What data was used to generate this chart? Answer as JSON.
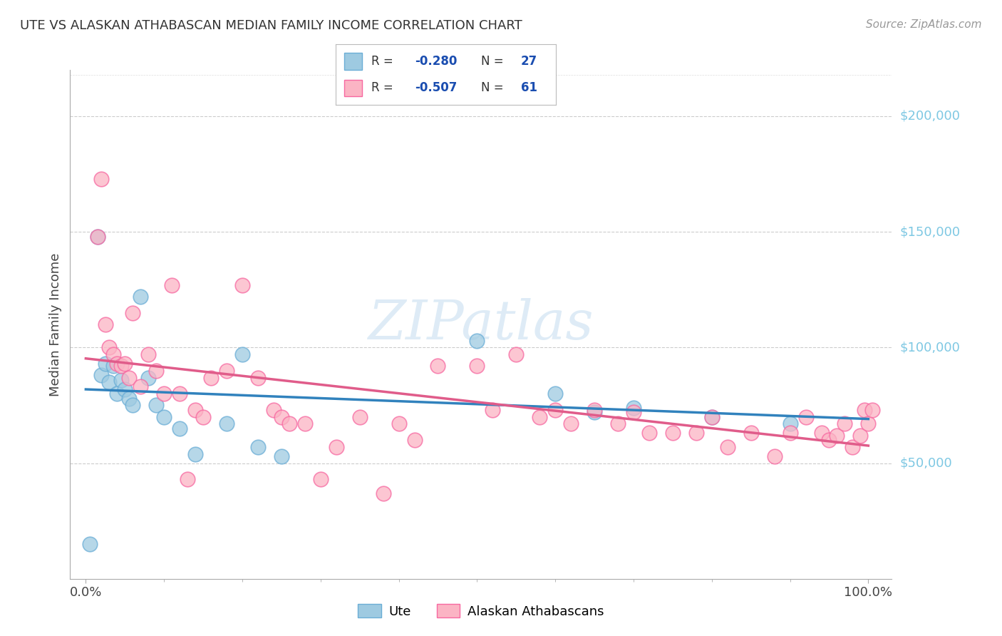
{
  "title": "UTE VS ALASKAN ATHABASCAN MEDIAN FAMILY INCOME CORRELATION CHART",
  "source": "Source: ZipAtlas.com",
  "ylabel": "Median Family Income",
  "y_tick_labels": [
    "$50,000",
    "$100,000",
    "$150,000",
    "$200,000"
  ],
  "y_tick_values": [
    50000,
    100000,
    150000,
    200000
  ],
  "legend_bottom_1": "Ute",
  "legend_bottom_2": "Alaskan Athabascans",
  "legend_r1": "R = -0.280",
  "legend_n1": "N = 27",
  "legend_r2": "R = -0.507",
  "legend_n2": "N = 61",
  "color_blue": "#9ecae1",
  "color_blue_edge": "#6baed6",
  "color_blue_line": "#3182bd",
  "color_pink": "#fbb4c4",
  "color_pink_edge": "#f768a1",
  "color_pink_line": "#e05c8a",
  "color_r_text": "#1a4db0",
  "background": "#ffffff",
  "grid_color": "#cccccc",
  "ytick_color": "#7ec8e3",
  "ute_x": [
    0.5,
    1.5,
    2.0,
    2.5,
    3.0,
    3.5,
    4.0,
    4.5,
    5.0,
    5.5,
    6.0,
    7.0,
    8.0,
    9.0,
    10.0,
    12.0,
    14.0,
    18.0,
    20.0,
    22.0,
    25.0,
    50.0,
    60.0,
    65.0,
    70.0,
    80.0,
    90.0
  ],
  "ute_y": [
    15000,
    148000,
    88000,
    93000,
    85000,
    92000,
    80000,
    86000,
    82000,
    78000,
    75000,
    122000,
    87000,
    75000,
    70000,
    65000,
    54000,
    67000,
    97000,
    57000,
    53000,
    103000,
    80000,
    72000,
    74000,
    70000,
    67000
  ],
  "ath_x": [
    1.5,
    2.0,
    2.5,
    3.0,
    3.5,
    4.0,
    4.5,
    5.0,
    5.5,
    6.0,
    7.0,
    8.0,
    9.0,
    10.0,
    11.0,
    12.0,
    13.0,
    14.0,
    15.0,
    16.0,
    18.0,
    20.0,
    22.0,
    24.0,
    25.0,
    26.0,
    28.0,
    30.0,
    32.0,
    35.0,
    38.0,
    40.0,
    42.0,
    45.0,
    50.0,
    52.0,
    55.0,
    58.0,
    60.0,
    62.0,
    65.0,
    68.0,
    70.0,
    72.0,
    75.0,
    78.0,
    80.0,
    82.0,
    85.0,
    88.0,
    90.0,
    92.0,
    94.0,
    95.0,
    96.0,
    97.0,
    98.0,
    99.0,
    99.5,
    100.0,
    100.5
  ],
  "ath_y": [
    148000,
    173000,
    110000,
    100000,
    97000,
    93000,
    92000,
    93000,
    87000,
    115000,
    83000,
    97000,
    90000,
    80000,
    127000,
    80000,
    43000,
    73000,
    70000,
    87000,
    90000,
    127000,
    87000,
    73000,
    70000,
    67000,
    67000,
    43000,
    57000,
    70000,
    37000,
    67000,
    60000,
    92000,
    92000,
    73000,
    97000,
    70000,
    73000,
    67000,
    73000,
    67000,
    72000,
    63000,
    63000,
    63000,
    70000,
    57000,
    63000,
    53000,
    63000,
    70000,
    63000,
    60000,
    62000,
    67000,
    57000,
    62000,
    73000,
    67000,
    73000
  ],
  "xlim": [
    -2,
    103
  ],
  "ylim": [
    0,
    220000
  ]
}
